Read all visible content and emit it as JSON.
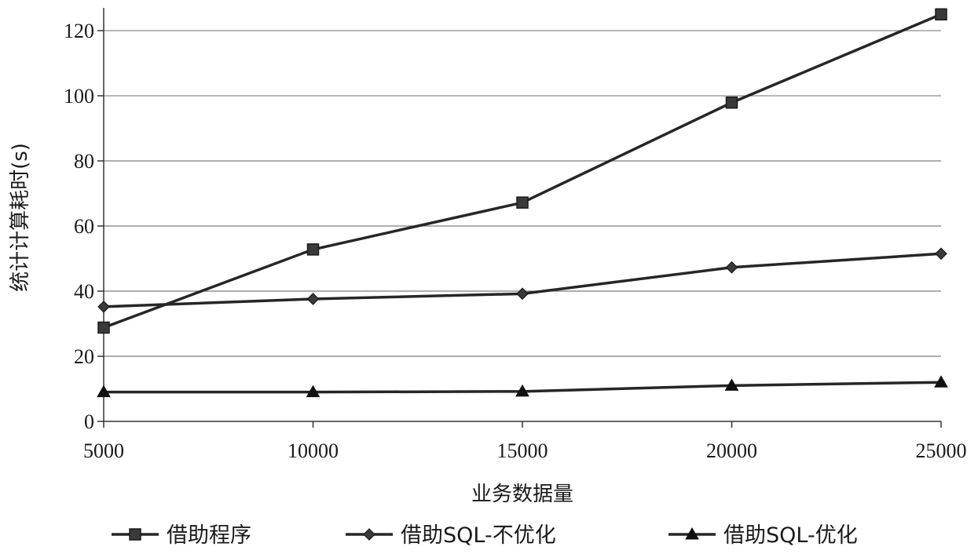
{
  "chart_data": {
    "type": "line",
    "x": [
      5000,
      10000,
      15000,
      20000,
      25000
    ],
    "xlabel": "业务数据量",
    "ylabel": "统计计算耗时(s)",
    "xlim": [
      5000,
      25000
    ],
    "ylim": [
      0,
      127
    ],
    "x_ticks": [
      "5000",
      "10000",
      "15000",
      "20000",
      "25000"
    ],
    "y_ticks": [
      "0",
      "20",
      "40",
      "60",
      "80",
      "100",
      "120"
    ],
    "grid": "horizontal",
    "legend_position": "bottom",
    "series": [
      {
        "name": "借助程序",
        "marker": "square",
        "values": [
          28.8,
          52.8,
          67.2,
          97.9,
          125.0
        ]
      },
      {
        "name": "借助SQL-不优化",
        "marker": "diamond",
        "values": [
          35.2,
          37.6,
          39.2,
          47.3,
          51.5
        ]
      },
      {
        "name": "借助SQL-优化",
        "marker": "triangle",
        "values": [
          9.0,
          9.0,
          9.2,
          11.0,
          12.0
        ]
      }
    ],
    "colors": {
      "line": "#262626",
      "marker_fill": "#3a3a3a",
      "grid": "#7f7f7f",
      "axis": "#333333"
    }
  }
}
